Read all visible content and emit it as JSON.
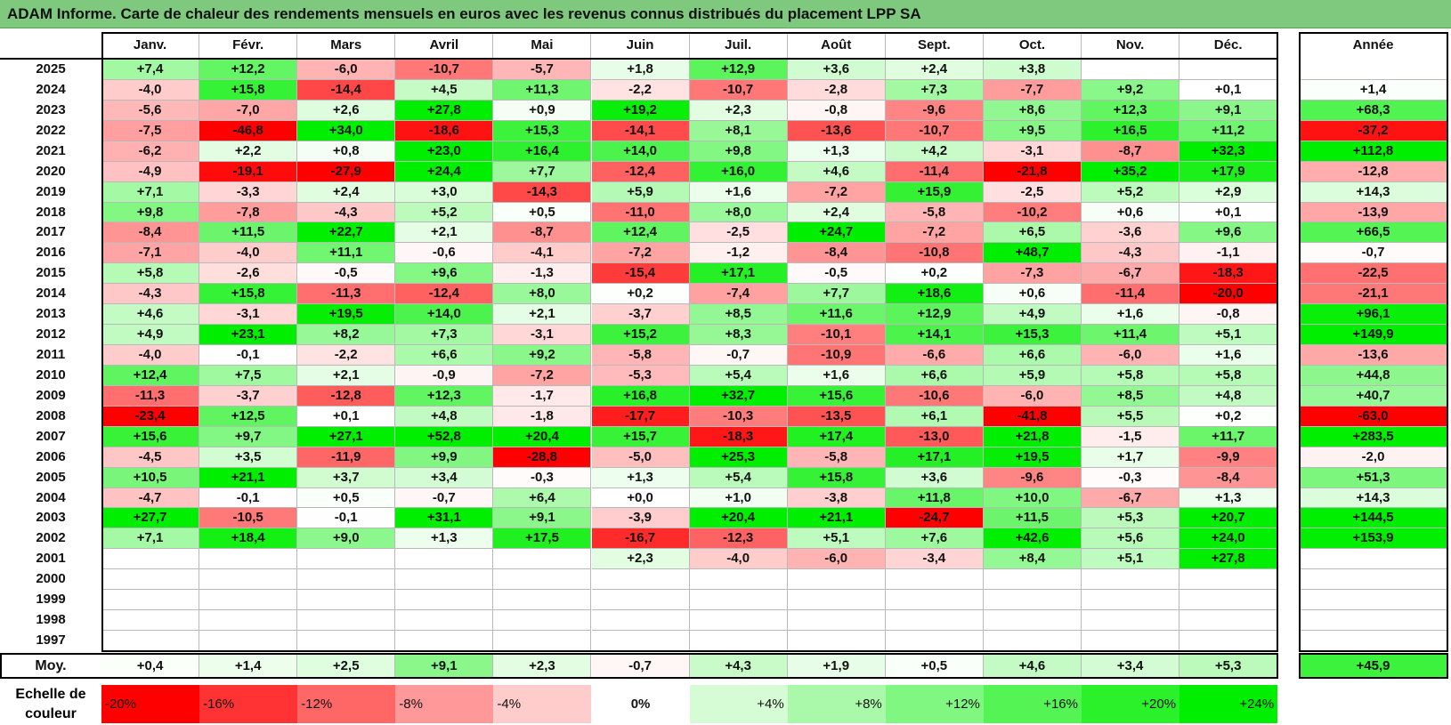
{
  "title": "ADAM Informe. Carte de chaleur des rendements mensuels en euros avec les revenus connus distribués du placement LPP SA",
  "chart_data": {
    "type": "heatmap",
    "columns": [
      "Janv.",
      "Févr.",
      "Mars",
      "Avril",
      "Mai",
      "Juin",
      "Juil.",
      "Août",
      "Sept.",
      "Oct.",
      "Nov.",
      "Déc."
    ],
    "year_header": "Année",
    "rows": [
      {
        "year": "2025",
        "months": [
          "+7,4",
          "+12,2",
          "-6,0",
          "-10,7",
          "-5,7",
          "+1,8",
          "+12,9",
          "+3,6",
          "+2,4",
          "+3,8",
          "",
          ""
        ],
        "annual": ""
      },
      {
        "year": "2024",
        "months": [
          "-4,0",
          "+15,8",
          "-14,4",
          "+4,5",
          "+11,3",
          "-2,2",
          "-10,7",
          "-2,8",
          "+7,3",
          "-7,7",
          "+9,2",
          "+0,1"
        ],
        "annual": "+1,4"
      },
      {
        "year": "2023",
        "months": [
          "-5,6",
          "-7,0",
          "+2,6",
          "+27,8",
          "+0,9",
          "+19,2",
          "+2,3",
          "-0,8",
          "-9,6",
          "+8,6",
          "+12,3",
          "+9,1"
        ],
        "annual": "+68,3"
      },
      {
        "year": "2022",
        "months": [
          "-7,5",
          "-46,8",
          "+34,0",
          "-18,6",
          "+15,3",
          "-14,1",
          "+8,1",
          "-13,6",
          "-10,7",
          "+9,5",
          "+16,5",
          "+11,2"
        ],
        "annual": "-37,2"
      },
      {
        "year": "2021",
        "months": [
          "-6,2",
          "+2,2",
          "+0,8",
          "+23,0",
          "+16,4",
          "+14,0",
          "+9,8",
          "+1,3",
          "+4,2",
          "-3,1",
          "-8,7",
          "+32,3"
        ],
        "annual": "+112,8"
      },
      {
        "year": "2020",
        "months": [
          "-4,9",
          "-19,1",
          "-27,9",
          "+24,4",
          "+7,7",
          "-12,4",
          "+16,0",
          "+4,6",
          "-11,4",
          "-21,8",
          "+35,2",
          "+17,9"
        ],
        "annual": "-12,8"
      },
      {
        "year": "2019",
        "months": [
          "+7,1",
          "-3,3",
          "+2,4",
          "+3,0",
          "-14,3",
          "+5,9",
          "+1,6",
          "-7,2",
          "+15,9",
          "-2,5",
          "+5,2",
          "+2,9"
        ],
        "annual": "+14,3"
      },
      {
        "year": "2018",
        "months": [
          "+9,8",
          "-7,8",
          "-4,3",
          "+5,2",
          "+0,5",
          "-11,0",
          "+8,0",
          "+2,4",
          "-5,8",
          "-10,2",
          "+0,6",
          "+0,1"
        ],
        "annual": "-13,9"
      },
      {
        "year": "2017",
        "months": [
          "-8,4",
          "+11,5",
          "+22,7",
          "+2,1",
          "-8,7",
          "+12,4",
          "-2,5",
          "+24,7",
          "-7,2",
          "+6,5",
          "-3,6",
          "+9,6"
        ],
        "annual": "+66,5"
      },
      {
        "year": "2016",
        "months": [
          "-7,1",
          "-4,0",
          "+11,1",
          "-0,6",
          "-4,1",
          "-7,2",
          "-1,2",
          "-8,4",
          "-10,8",
          "+48,7",
          "-4,3",
          "-1,1"
        ],
        "annual": "-0,7"
      },
      {
        "year": "2015",
        "months": [
          "+5,8",
          "-2,6",
          "-0,5",
          "+9,6",
          "-1,3",
          "-15,4",
          "+17,1",
          "-0,5",
          "+0,2",
          "-7,3",
          "-6,7",
          "-18,3"
        ],
        "annual": "-22,5"
      },
      {
        "year": "2014",
        "months": [
          "-4,3",
          "+15,8",
          "-11,3",
          "-12,4",
          "+8,0",
          "+0,2",
          "-7,4",
          "+7,7",
          "+18,6",
          "+0,6",
          "-11,4",
          "-20,0"
        ],
        "annual": "-21,1"
      },
      {
        "year": "2013",
        "months": [
          "+4,6",
          "-3,1",
          "+19,5",
          "+14,0",
          "+2,1",
          "-3,7",
          "+8,5",
          "+11,6",
          "+12,9",
          "+4,9",
          "+1,6",
          "-0,8"
        ],
        "annual": "+96,1"
      },
      {
        "year": "2012",
        "months": [
          "+4,9",
          "+23,1",
          "+8,2",
          "+7,3",
          "-3,1",
          "+15,2",
          "+8,3",
          "-10,1",
          "+14,1",
          "+15,3",
          "+11,4",
          "+5,1"
        ],
        "annual": "+149,9"
      },
      {
        "year": "2011",
        "months": [
          "-4,0",
          "-0,1",
          "-2,2",
          "+6,6",
          "+9,2",
          "-5,8",
          "-0,7",
          "-10,9",
          "-6,6",
          "+6,6",
          "-6,0",
          "+1,6"
        ],
        "annual": "-13,6"
      },
      {
        "year": "2010",
        "months": [
          "+12,4",
          "+7,5",
          "+2,1",
          "-0,9",
          "-7,2",
          "-5,3",
          "+5,4",
          "+1,6",
          "+6,6",
          "+5,9",
          "+5,8",
          "+5,8"
        ],
        "annual": "+44,8"
      },
      {
        "year": "2009",
        "months": [
          "-11,3",
          "-3,7",
          "-12,8",
          "+12,3",
          "-1,7",
          "+16,8",
          "+32,7",
          "+15,6",
          "-10,6",
          "-6,0",
          "+8,5",
          "+4,8"
        ],
        "annual": "+40,7"
      },
      {
        "year": "2008",
        "months": [
          "-23,4",
          "+12,5",
          "+0,1",
          "+4,8",
          "-1,8",
          "-17,7",
          "-10,3",
          "-13,5",
          "+6,1",
          "-41,8",
          "+5,5",
          "+0,2"
        ],
        "annual": "-63,0"
      },
      {
        "year": "2007",
        "months": [
          "+15,6",
          "+9,7",
          "+27,1",
          "+52,8",
          "+20,4",
          "+15,7",
          "-18,3",
          "+17,4",
          "-13,0",
          "+21,8",
          "-1,5",
          "+11,7"
        ],
        "annual": "+283,5"
      },
      {
        "year": "2006",
        "months": [
          "-4,5",
          "+3,5",
          "-11,9",
          "+9,9",
          "-28,8",
          "-5,0",
          "+25,3",
          "-5,8",
          "+17,1",
          "+19,5",
          "+1,7",
          "-9,9"
        ],
        "annual": "-2,0"
      },
      {
        "year": "2005",
        "months": [
          "+10,5",
          "+21,1",
          "+3,7",
          "+3,4",
          "-0,3",
          "+1,3",
          "+5,4",
          "+15,8",
          "+3,6",
          "-9,6",
          "-0,3",
          "-8,4"
        ],
        "annual": "+51,3"
      },
      {
        "year": "2004",
        "months": [
          "-4,7",
          "-0,1",
          "+0,5",
          "-0,7",
          "+6,4",
          "+0,0",
          "+1,0",
          "-3,8",
          "+11,8",
          "+10,0",
          "-6,7",
          "+1,3"
        ],
        "annual": "+14,3"
      },
      {
        "year": "2003",
        "months": [
          "+27,7",
          "-10,5",
          "-0,1",
          "+31,1",
          "+9,1",
          "-3,9",
          "+20,4",
          "+21,1",
          "-24,7",
          "+11,5",
          "+5,3",
          "+20,7"
        ],
        "annual": "+144,5"
      },
      {
        "year": "2002",
        "months": [
          "+7,1",
          "+18,4",
          "+9,0",
          "+1,3",
          "+17,5",
          "-16,7",
          "-12,3",
          "+5,1",
          "+7,6",
          "+42,6",
          "+5,6",
          "+24,0"
        ],
        "annual": "+153,9"
      },
      {
        "year": "2001",
        "months": [
          "",
          "",
          "",
          "",
          "",
          "+2,3",
          "-4,0",
          "-6,0",
          "-3,4",
          "+8,4",
          "+5,1",
          "+27,8"
        ],
        "annual": ""
      },
      {
        "year": "2000",
        "months": [
          "",
          "",
          "",
          "",
          "",
          "",
          "",
          "",
          "",
          "",
          "",
          ""
        ],
        "annual": ""
      },
      {
        "year": "1999",
        "months": [
          "",
          "",
          "",
          "",
          "",
          "",
          "",
          "",
          "",
          "",
          "",
          ""
        ],
        "annual": ""
      },
      {
        "year": "1998",
        "months": [
          "",
          "",
          "",
          "",
          "",
          "",
          "",
          "",
          "",
          "",
          "",
          ""
        ],
        "annual": ""
      },
      {
        "year": "1997",
        "months": [
          "",
          "",
          "",
          "",
          "",
          "",
          "",
          "",
          "",
          "",
          "",
          ""
        ],
        "annual": ""
      }
    ],
    "average": {
      "label": "Moy.",
      "months": [
        "+0,4",
        "+1,4",
        "+2,5",
        "+9,1",
        "+2,3",
        "-0,7",
        "+4,3",
        "+1,9",
        "+0,5",
        "+4,6",
        "+3,4",
        "+5,3"
      ],
      "annual": "+45,9"
    },
    "color_scale": {
      "label": "Echelle de couleur",
      "steps": [
        "-20%",
        "-16%",
        "-12%",
        "-8%",
        "-4%",
        "0%",
        "+4%",
        "+8%",
        "+12%",
        "+16%",
        "+20%",
        "+24%"
      ]
    },
    "colors": {
      "negative_max": "#ff0000",
      "neutral": "#ffffff",
      "positive_max": "#00ee00",
      "title_bar": "#7fc97f"
    }
  }
}
